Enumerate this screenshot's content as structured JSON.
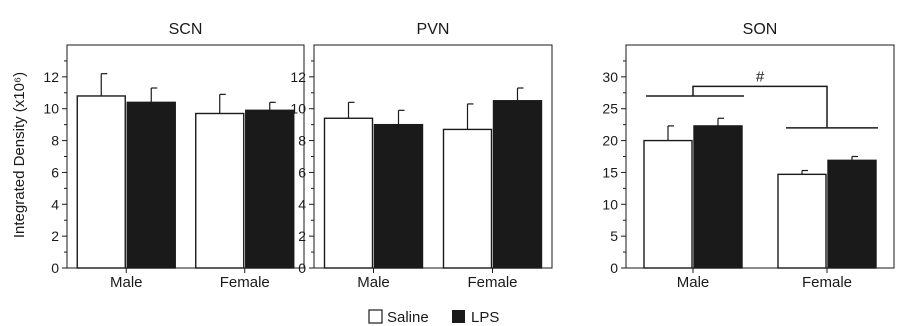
{
  "figure": {
    "ylabel": "Integrated Density (x10⁶)",
    "legend": [
      {
        "label": "Saline",
        "color": "#ffffff"
      },
      {
        "label": "LPS",
        "color": "#1a1a1a"
      }
    ]
  },
  "chart_data": [
    {
      "type": "bar",
      "title": "SCN",
      "categories": [
        "Male",
        "Female"
      ],
      "series": [
        {
          "name": "Saline",
          "values": [
            10.8,
            9.7
          ],
          "errors": [
            1.4,
            1.2
          ]
        },
        {
          "name": "LPS",
          "values": [
            10.4,
            9.9
          ],
          "errors": [
            0.9,
            0.5
          ]
        }
      ],
      "ylim": [
        0,
        14
      ],
      "yticks": [
        0,
        2,
        4,
        6,
        8,
        10,
        12
      ],
      "annotations": []
    },
    {
      "type": "bar",
      "title": "PVN",
      "categories": [
        "Male",
        "Female"
      ],
      "series": [
        {
          "name": "Saline",
          "values": [
            9.4,
            8.7
          ],
          "errors": [
            1.0,
            1.6
          ]
        },
        {
          "name": "LPS",
          "values": [
            9.0,
            10.5
          ],
          "errors": [
            0.9,
            0.8
          ]
        }
      ],
      "ylim": [
        0,
        14
      ],
      "yticks": [
        0,
        2,
        4,
        6,
        8,
        10,
        12
      ],
      "annotations": []
    },
    {
      "type": "bar",
      "title": "SON",
      "categories": [
        "Male",
        "Female"
      ],
      "series": [
        {
          "name": "Saline",
          "values": [
            20.0,
            14.7
          ],
          "errors": [
            2.3,
            0.6
          ]
        },
        {
          "name": "LPS",
          "values": [
            22.3,
            16.9
          ],
          "errors": [
            1.2,
            0.6
          ]
        }
      ],
      "ylim": [
        0,
        35
      ],
      "yticks": [
        0,
        5,
        10,
        15,
        20,
        25,
        30
      ],
      "annotations": [
        {
          "type": "significance-bracket",
          "label": "#",
          "between": [
            "Male",
            "Female"
          ],
          "male_level": 27,
          "female_level": 22,
          "top_level": 28.5
        }
      ]
    }
  ]
}
